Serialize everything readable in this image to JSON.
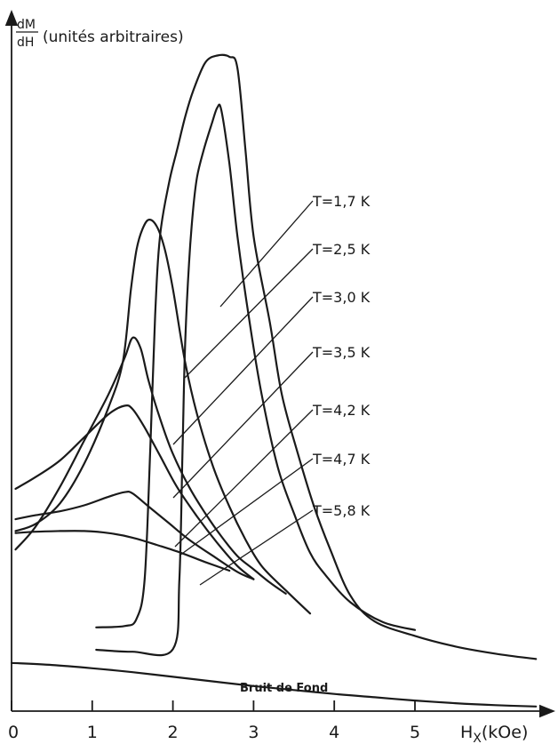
{
  "chart_data": {
    "type": "line",
    "title": "",
    "ylabel": {
      "numerator": "dM",
      "denominator": "dH",
      "text": "(unités arbitraires)"
    },
    "xlabel": {
      "main": "H",
      "sub": "X",
      "units": "(kOe)"
    },
    "xlim": [
      0,
      6.7
    ],
    "ylim": [
      0,
      100
    ],
    "x_ticks": [
      0,
      1,
      2,
      3,
      4,
      5
    ],
    "x_tick_labels": [
      "0",
      "1",
      "2",
      "3",
      "4",
      "5"
    ],
    "grid": false,
    "legend": "none",
    "series": [
      {
        "name": "T = 1,7 K",
        "label": "T=1,7 K",
        "points": [
          [
            1.05,
            12.7
          ],
          [
            1.4,
            12.9
          ],
          [
            1.55,
            14.0
          ],
          [
            1.65,
            20
          ],
          [
            1.72,
            40
          ],
          [
            1.78,
            60
          ],
          [
            1.84,
            72
          ],
          [
            1.95,
            80
          ],
          [
            2.05,
            85
          ],
          [
            2.15,
            90
          ],
          [
            2.25,
            94
          ],
          [
            2.4,
            98.3
          ],
          [
            2.55,
            99.4
          ],
          [
            2.7,
            99.2
          ],
          [
            2.8,
            97.5
          ],
          [
            2.9,
            85
          ],
          [
            3.0,
            72
          ],
          [
            3.2,
            59
          ],
          [
            3.35,
            48
          ],
          [
            3.55,
            39
          ],
          [
            3.75,
            31
          ],
          [
            3.95,
            24.5
          ],
          [
            4.2,
            17.5
          ],
          [
            4.5,
            13.6
          ],
          [
            5.0,
            11.4
          ],
          [
            5.5,
            9.8
          ],
          [
            6.0,
            8.7
          ],
          [
            6.5,
            7.9
          ]
        ]
      },
      {
        "name": "T = 2,5 K",
        "label": "T=2,5 K",
        "points": [
          [
            1.05,
            9.3
          ],
          [
            1.5,
            9.0
          ],
          [
            2.0,
            9.4
          ],
          [
            2.08,
            20
          ],
          [
            2.12,
            40
          ],
          [
            2.15,
            55
          ],
          [
            2.2,
            68
          ],
          [
            2.25,
            76
          ],
          [
            2.3,
            81
          ],
          [
            2.38,
            85
          ],
          [
            2.48,
            89
          ],
          [
            2.55,
            91.5
          ],
          [
            2.6,
            91.1
          ],
          [
            2.7,
            83
          ],
          [
            2.8,
            72
          ],
          [
            2.95,
            59
          ],
          [
            3.1,
            48
          ],
          [
            3.3,
            37
          ],
          [
            3.5,
            30
          ],
          [
            3.7,
            24
          ],
          [
            3.9,
            20.5
          ],
          [
            4.2,
            16.5
          ],
          [
            4.6,
            13.5
          ],
          [
            5.0,
            12.3
          ]
        ]
      },
      {
        "name": "T = 3,0 K",
        "label": "T=3,0 K",
        "points": [
          [
            0.05,
            27.3
          ],
          [
            0.3,
            28.4
          ],
          [
            0.6,
            31.5
          ],
          [
            0.9,
            37.5
          ],
          [
            1.2,
            46
          ],
          [
            1.38,
            53
          ],
          [
            1.48,
            64
          ],
          [
            1.55,
            70
          ],
          [
            1.62,
            73
          ],
          [
            1.7,
            74.5
          ],
          [
            1.8,
            73.5
          ],
          [
            1.9,
            70
          ],
          [
            2.0,
            64
          ],
          [
            2.15,
            53
          ],
          [
            2.3,
            45
          ],
          [
            2.5,
            37
          ],
          [
            2.7,
            31
          ],
          [
            2.9,
            26
          ],
          [
            3.1,
            22
          ],
          [
            3.4,
            18.3
          ],
          [
            3.7,
            14.8
          ]
        ]
      },
      {
        "name": "T = 3,5 K",
        "label": "T=3,5 K",
        "points": [
          [
            0.05,
            24.5
          ],
          [
            0.3,
            28
          ],
          [
            0.6,
            34
          ],
          [
            0.9,
            41
          ],
          [
            1.2,
            48
          ],
          [
            1.4,
            53.5
          ],
          [
            1.5,
            56.6
          ],
          [
            1.6,
            55
          ],
          [
            1.7,
            50
          ],
          [
            1.85,
            44
          ],
          [
            2.0,
            39
          ],
          [
            2.2,
            34
          ],
          [
            2.4,
            30
          ],
          [
            2.6,
            26.5
          ],
          [
            2.8,
            23.5
          ],
          [
            3.0,
            21.5
          ],
          [
            3.2,
            19.5
          ],
          [
            3.4,
            17.8
          ]
        ]
      },
      {
        "name": "T = 4,2 K",
        "label": "T=4,2 K",
        "points": [
          [
            0.05,
            33.7
          ],
          [
            0.3,
            35.5
          ],
          [
            0.6,
            38
          ],
          [
            0.9,
            41.5
          ],
          [
            1.2,
            45
          ],
          [
            1.4,
            46.3
          ],
          [
            1.5,
            45.8
          ],
          [
            1.65,
            43
          ],
          [
            1.85,
            38.5
          ],
          [
            2.05,
            34
          ],
          [
            2.3,
            29.5
          ],
          [
            2.55,
            25.5
          ],
          [
            2.8,
            22
          ],
          [
            3.0,
            20
          ]
        ]
      },
      {
        "name": "T = 4,7 K",
        "label": "T=4,7 K",
        "points": [
          [
            0.05,
            29.1
          ],
          [
            0.3,
            29.7
          ],
          [
            0.6,
            30.3
          ],
          [
            0.9,
            31.2
          ],
          [
            1.2,
            32.5
          ],
          [
            1.4,
            33.2
          ],
          [
            1.5,
            33.0
          ],
          [
            1.7,
            31
          ],
          [
            1.95,
            28.5
          ],
          [
            2.2,
            26
          ],
          [
            2.5,
            23.5
          ],
          [
            2.8,
            21.1
          ],
          [
            3.0,
            20
          ]
        ]
      },
      {
        "name": "T = 5,8 K",
        "label": "T=5,8 K",
        "points": [
          [
            0.05,
            27.0
          ],
          [
            0.3,
            27.2
          ],
          [
            0.6,
            27.3
          ],
          [
            0.9,
            27.3
          ],
          [
            1.2,
            27.0
          ],
          [
            1.5,
            26.3
          ],
          [
            1.8,
            25.2
          ],
          [
            2.1,
            24.0
          ],
          [
            2.4,
            22.6
          ],
          [
            2.7,
            21.3
          ]
        ]
      },
      {
        "name": "Bruit de Fond",
        "label": "Bruit de Fond",
        "points": [
          [
            0.0,
            7.3
          ],
          [
            0.5,
            7.0
          ],
          [
            1.0,
            6.5
          ],
          [
            1.5,
            5.9
          ],
          [
            2.0,
            5.2
          ],
          [
            2.5,
            4.5
          ],
          [
            3.0,
            3.8
          ],
          [
            3.5,
            3.2
          ],
          [
            4.0,
            2.6
          ],
          [
            4.5,
            2.1
          ],
          [
            5.0,
            1.6
          ],
          [
            5.5,
            1.2
          ],
          [
            6.0,
            0.9
          ],
          [
            6.5,
            0.7
          ]
        ]
      }
    ]
  }
}
